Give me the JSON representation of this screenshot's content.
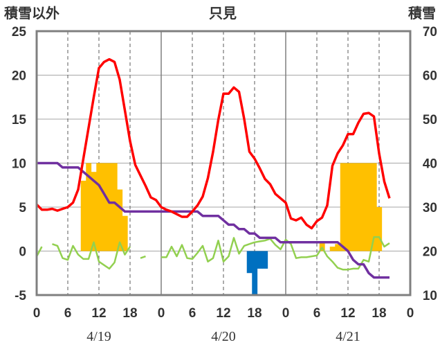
{
  "chart_data": {
    "type": "combo",
    "title": "只見",
    "left_axis_label": "積雪以外",
    "right_axis_label": "積雪",
    "left_ylim": [
      -5,
      25
    ],
    "left_yticks": [
      -5,
      0,
      5,
      10,
      15,
      20,
      25
    ],
    "right_ylim": [
      10,
      70
    ],
    "right_yticks": [
      10,
      20,
      30,
      40,
      50,
      60,
      70
    ],
    "x_range_hours": [
      0,
      72
    ],
    "x_tick_hours": [
      0,
      6,
      12,
      18,
      24,
      30,
      36,
      42,
      48,
      54,
      60,
      66,
      72
    ],
    "x_tick_labels": [
      "0",
      "6",
      "12",
      "18",
      "0",
      "6",
      "12",
      "18",
      "0",
      "6",
      "12",
      "18",
      "0"
    ],
    "date_labels": [
      {
        "hour": 12,
        "text": "4/19"
      },
      {
        "hour": 36,
        "text": "4/20"
      },
      {
        "hour": 60,
        "text": "4/21"
      }
    ],
    "grid": true,
    "colors": {
      "temperature": "#ff0000",
      "snow_depth": "#7030a0",
      "temp_change": "#92d050",
      "snowfall": "#ffc000",
      "snow_decrease": "#0070c0",
      "frame": "#7f7f7f"
    },
    "temperature": {
      "hours": [
        0,
        1,
        2,
        3,
        4,
        5,
        6,
        7,
        8,
        9,
        10,
        11,
        12,
        13,
        14,
        15,
        16,
        17,
        18,
        19,
        20,
        21,
        22,
        23,
        24,
        25,
        26,
        27,
        28,
        29,
        30,
        31,
        32,
        33,
        34,
        35,
        36,
        37,
        38,
        39,
        40,
        41,
        42,
        43,
        44,
        45,
        46,
        47,
        48,
        49,
        50,
        51,
        52,
        53,
        54,
        55,
        56,
        57,
        58,
        59,
        60,
        61,
        62,
        63,
        64,
        65,
        66,
        67,
        68
      ],
      "values": [
        5.3,
        4.7,
        4.7,
        4.8,
        4.6,
        4.8,
        5.0,
        5.5,
        7.0,
        10.5,
        14.0,
        17.5,
        20.8,
        21.5,
        21.8,
        21.5,
        19.5,
        16.0,
        12.5,
        9.8,
        8.6,
        7.4,
        6.1,
        5.8,
        5.0,
        4.7,
        4.5,
        4.2,
        3.9,
        3.9,
        4.5,
        5.2,
        6.2,
        8.3,
        11.3,
        14.9,
        17.9,
        17.9,
        18.6,
        18.1,
        15.0,
        11.3,
        10.5,
        9.4,
        8.2,
        7.6,
        6.5,
        6.0,
        5.5,
        3.7,
        3.5,
        3.8,
        3.0,
        2.6,
        3.4,
        3.8,
        5.2,
        9.7,
        11.1,
        12.0,
        13.3,
        13.3,
        14.6,
        15.6,
        15.7,
        15.3,
        11.1,
        7.9,
        6.0
      ]
    },
    "snow_depth": {
      "hours": [
        0,
        1,
        2,
        3,
        4,
        5,
        6,
        7,
        8,
        9,
        10,
        11,
        12,
        13,
        14,
        15,
        16,
        17,
        18,
        19,
        20,
        21,
        22,
        23,
        24,
        25,
        26,
        27,
        28,
        29,
        30,
        31,
        32,
        33,
        34,
        35,
        36,
        37,
        38,
        39,
        40,
        41,
        42,
        43,
        44,
        45,
        46,
        47,
        48,
        49,
        50,
        51,
        52,
        53,
        54,
        55,
        56,
        57,
        58,
        59,
        60,
        61,
        62,
        63,
        64,
        65,
        66,
        67,
        68
      ],
      "values": [
        40,
        40,
        40,
        40,
        40,
        39,
        39,
        39,
        39,
        38,
        37,
        36,
        35,
        33,
        31,
        31,
        30,
        29,
        29,
        29,
        29,
        29,
        29,
        29,
        29,
        29,
        29,
        29,
        29,
        29,
        29,
        29,
        28,
        28,
        28,
        28,
        27,
        26,
        26,
        25,
        25,
        24,
        24,
        23,
        23,
        23,
        23,
        22,
        22,
        22,
        22,
        22,
        22,
        22,
        22,
        22,
        22,
        22,
        22,
        21,
        20,
        18,
        17,
        17,
        15,
        14,
        14,
        14,
        14
      ]
    },
    "temp_change": {
      "hours": [
        0,
        1,
        2,
        3,
        4,
        5,
        6,
        7,
        8,
        9,
        10,
        11,
        12,
        13,
        14,
        15,
        16,
        17,
        18,
        19,
        20,
        21,
        22,
        23,
        24,
        25,
        26,
        27,
        28,
        29,
        30,
        31,
        32,
        33,
        34,
        35,
        36,
        37,
        38,
        39,
        40,
        41,
        42,
        43,
        44,
        45,
        46,
        47,
        48,
        49,
        50,
        51,
        52,
        53,
        54,
        55,
        56,
        57,
        58,
        59,
        60,
        61,
        62,
        63,
        64,
        65,
        66,
        67,
        68
      ],
      "values": [
        -0.6,
        0.5,
        null,
        0.8,
        0.6,
        -0.8,
        -1.0,
        0.6,
        -0.4,
        -0.9,
        -0.9,
        1.0,
        -1.2,
        -1.6,
        -2.0,
        -1.3,
        1.0,
        -0.4,
        0.5,
        null,
        -0.8,
        -0.6,
        null,
        null,
        -0.7,
        -0.7,
        0.5,
        -0.6,
        0.7,
        -0.8,
        -0.9,
        -0.2,
        0.6,
        -1.2,
        -0.8,
        1.2,
        -1.2,
        -0.6,
        1.5,
        -0.3,
        0.6,
        0.8,
        1.0,
        1.1,
        1.2,
        1.4,
        0.7,
        0.2,
        1.3,
        0.8,
        -0.8,
        -0.7,
        -0.7,
        -0.6,
        -0.5,
        0.4,
        -0.6,
        -1.2,
        -1.9,
        -2.1,
        -2.1,
        -2.0,
        -2.0,
        -1.0,
        -1.2,
        1.6,
        1.6,
        0.5,
        0.9
      ]
    },
    "snowfall": {
      "hours": [
        9,
        10,
        11,
        12,
        13,
        14,
        15,
        16,
        17,
        55,
        57,
        58,
        59,
        60,
        61,
        62,
        63,
        64,
        65,
        66
      ],
      "values": [
        8,
        10,
        9,
        10,
        10,
        10,
        10,
        7,
        4,
        1,
        0.5,
        0.8,
        10,
        10,
        10,
        10,
        10,
        10,
        10,
        5
      ]
    },
    "snow_decrease": {
      "hours": [
        41,
        42,
        43,
        44
      ],
      "values": [
        -2.5,
        -5,
        -2,
        -2
      ]
    }
  }
}
